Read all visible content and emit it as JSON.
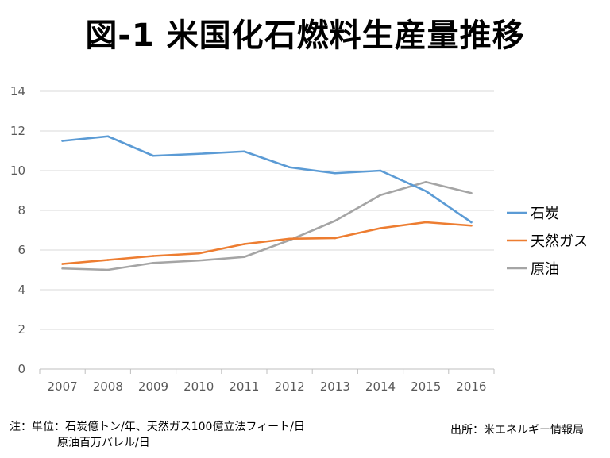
{
  "title": "図-1 米国化石燃料生産量推移",
  "note_line1": "注：単位：石炭億トン/年、天然ガス100億立法フィート/日",
  "note_line2": "原油百万バレル/日",
  "source": "出所：米エネルギー情報局",
  "chart_data": {
    "type": "line",
    "title": "図-1 米国化石燃料生産量推移",
    "xlabel": "",
    "ylabel": "",
    "categories": [
      "2007",
      "2008",
      "2009",
      "2010",
      "2011",
      "2012",
      "2013",
      "2014",
      "2015",
      "2016"
    ],
    "ylim": [
      0,
      14
    ],
    "yticks": [
      0,
      2,
      4,
      6,
      8,
      10,
      12,
      14
    ],
    "grid": true,
    "legend_position": "right",
    "series": [
      {
        "name": "石炭",
        "color": "#5B9BD5",
        "values": [
          11.5,
          11.73,
          10.75,
          10.85,
          10.97,
          10.17,
          9.87,
          10.0,
          8.97,
          7.4
        ]
      },
      {
        "name": "天然ガス",
        "color": "#ED7D31",
        "values": [
          5.3,
          5.5,
          5.7,
          5.83,
          6.3,
          6.57,
          6.6,
          7.1,
          7.4,
          7.23
        ]
      },
      {
        "name": "原油",
        "color": "#A5A5A5",
        "values": [
          5.07,
          5.0,
          5.35,
          5.47,
          5.65,
          6.5,
          7.47,
          8.77,
          9.43,
          8.87
        ]
      }
    ]
  }
}
